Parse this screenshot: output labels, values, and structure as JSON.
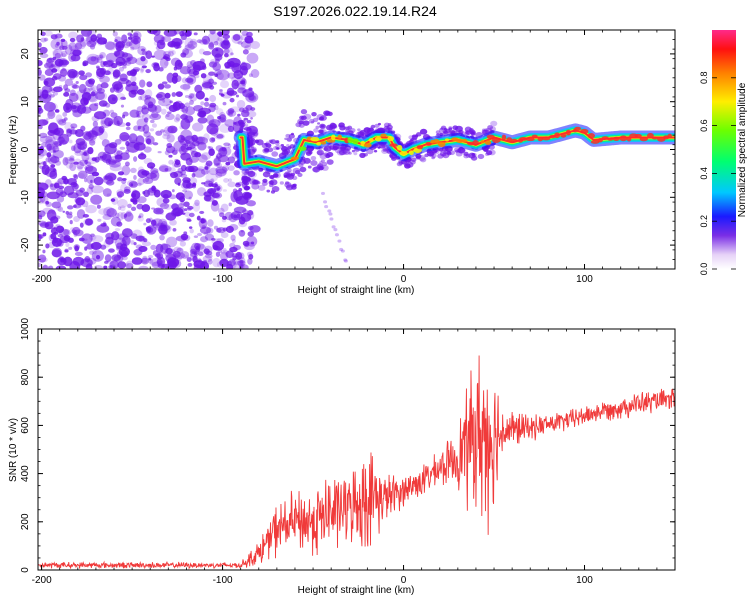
{
  "title": "S197.2026.022.19.14.R24",
  "colors": {
    "frame": "#000000",
    "snr_line": "#f03a3a",
    "scatter_purple": "#6e16e8",
    "background": "#ffffff"
  },
  "chart_data": [
    {
      "type": "heatmap",
      "name": "spectrogram",
      "xlabel": "Height of straight line (km)",
      "ylabel": "Frequency (Hz)",
      "xlim": [
        -202,
        150
      ],
      "ylim": [
        -25,
        25
      ],
      "xticks": [
        -200,
        -100,
        0,
        100
      ],
      "yticks": [
        -20,
        -10,
        0,
        10,
        20
      ],
      "colorbar": {
        "label": "Normalized spectral amplitude",
        "range": [
          0.0,
          1.0
        ],
        "ticks": [
          0.0,
          0.2,
          0.4,
          0.6,
          0.8
        ],
        "tick_labels": [
          "0.0",
          "0.2",
          "0.4",
          "0.6",
          "0.8"
        ]
      },
      "noise_region_x": [
        -202,
        -90
      ],
      "signal_onset_x": -90,
      "ridge": [
        {
          "x": -88,
          "f": -3.0
        },
        {
          "x": -80,
          "f": -2.5
        },
        {
          "x": -70,
          "f": -3.5
        },
        {
          "x": -60,
          "f": -2.0
        },
        {
          "x": -55,
          "f": 2.0
        },
        {
          "x": -48,
          "f": 1.5
        },
        {
          "x": -40,
          "f": 2.5
        },
        {
          "x": -30,
          "f": 2.0
        },
        {
          "x": -22,
          "f": 1.0
        },
        {
          "x": -15,
          "f": 2.5
        },
        {
          "x": -8,
          "f": 2.5
        },
        {
          "x": -5,
          "f": 0.5
        },
        {
          "x": 0,
          "f": -1.0
        },
        {
          "x": 5,
          "f": 0.0
        },
        {
          "x": 12,
          "f": 1.0
        },
        {
          "x": 20,
          "f": 1.5
        },
        {
          "x": 30,
          "f": 2.0
        },
        {
          "x": 40,
          "f": 1.0
        },
        {
          "x": 50,
          "f": 2.5
        },
        {
          "x": 60,
          "f": 1.5
        },
        {
          "x": 70,
          "f": 2.5
        },
        {
          "x": 80,
          "f": 2.5
        },
        {
          "x": 90,
          "f": 3.5
        },
        {
          "x": 95,
          "f": 4.0
        },
        {
          "x": 100,
          "f": 3.5
        },
        {
          "x": 105,
          "f": 2.0
        },
        {
          "x": 120,
          "f": 2.5
        },
        {
          "x": 135,
          "f": 2.5
        },
        {
          "x": 150,
          "f": 2.5
        }
      ]
    },
    {
      "type": "line",
      "name": "snr",
      "xlabel": "Height of straight line (km)",
      "ylabel": "SNR (10 * v/v)",
      "xlim": [
        -202,
        150
      ],
      "ylim": [
        0,
        1000
      ],
      "xticks": [
        -200,
        -100,
        0,
        100
      ],
      "yticks": [
        0,
        200,
        400,
        600,
        800,
        1000
      ],
      "series": [
        {
          "name": "SNR",
          "envelope": [
            {
              "x": -202,
              "mean": 20,
              "amp": 15
            },
            {
              "x": -90,
              "mean": 20,
              "amp": 15
            },
            {
              "x": -80,
              "mean": 70,
              "amp": 60
            },
            {
              "x": -70,
              "mean": 170,
              "amp": 130
            },
            {
              "x": -60,
              "mean": 200,
              "amp": 150
            },
            {
              "x": -50,
              "mean": 200,
              "amp": 170
            },
            {
              "x": -40,
              "mean": 240,
              "amp": 200
            },
            {
              "x": -30,
              "mean": 260,
              "amp": 160
            },
            {
              "x": -20,
              "mean": 300,
              "amp": 260
            },
            {
              "x": -10,
              "mean": 300,
              "amp": 120
            },
            {
              "x": 0,
              "mean": 330,
              "amp": 80
            },
            {
              "x": 10,
              "mean": 370,
              "amp": 80
            },
            {
              "x": 20,
              "mean": 420,
              "amp": 80
            },
            {
              "x": 30,
              "mean": 470,
              "amp": 150
            },
            {
              "x": 35,
              "mean": 520,
              "amp": 300
            },
            {
              "x": 40,
              "mean": 560,
              "amp": 380
            },
            {
              "x": 45,
              "mean": 560,
              "amp": 480
            },
            {
              "x": 50,
              "mean": 560,
              "amp": 350
            },
            {
              "x": 55,
              "mean": 580,
              "amp": 120
            },
            {
              "x": 70,
              "mean": 590,
              "amp": 60
            },
            {
              "x": 90,
              "mean": 620,
              "amp": 50
            },
            {
              "x": 110,
              "mean": 660,
              "amp": 50
            },
            {
              "x": 130,
              "mean": 690,
              "amp": 60
            },
            {
              "x": 150,
              "mean": 710,
              "amp": 50
            }
          ]
        }
      ]
    }
  ]
}
